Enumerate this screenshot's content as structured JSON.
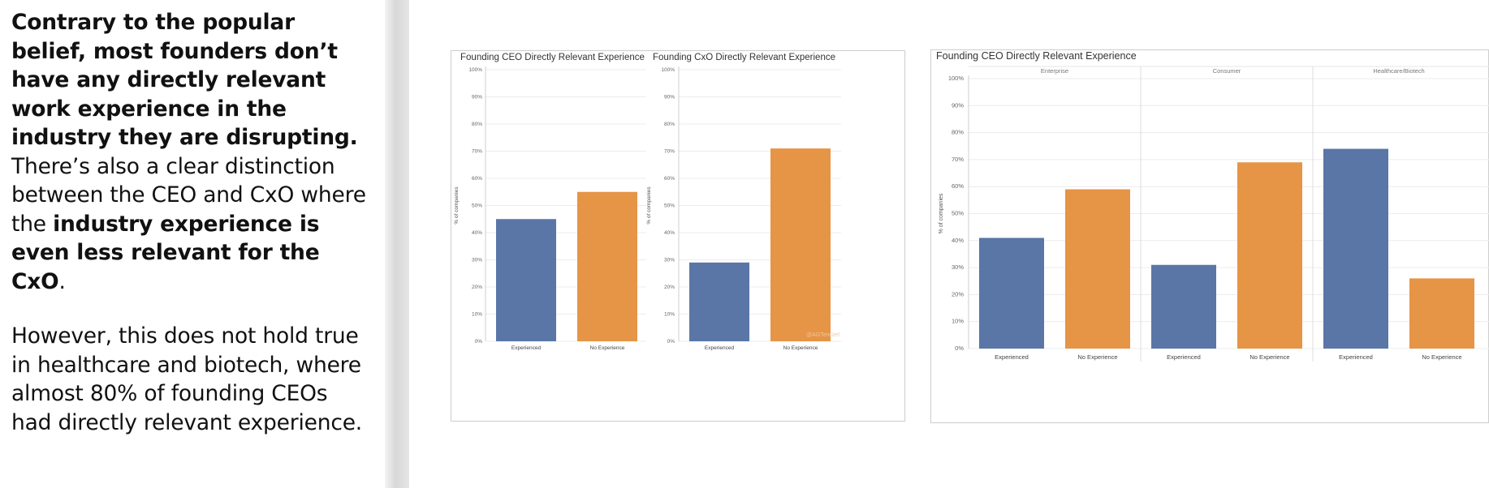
{
  "text": {
    "p1_bold": "Contrary to the popular belief, most founders don’t have any directly relevant work experience in the industry they are disrupting.",
    "p1_normal_a": " There’s also a clear distinction between the CEO and CxO where the ",
    "p1_bold_b": "industry experience is even less relevant for the CxO",
    "p1_normal_b": ".",
    "p2": "However, this does not hold true in healthcare and biotech, where almost 80% of founding CEOs had directly relevant experience."
  },
  "colors": {
    "experienced": "#5976a6",
    "no_experience": "#e69446",
    "gridline": "#ececec",
    "axis": "#cfcfcf"
  },
  "chart_data": [
    {
      "type": "bar",
      "title": "Founding CEO Directly Relevant Experience",
      "ylabel": "% of companies",
      "ylim": [
        0,
        100
      ],
      "yticks": [
        "0%",
        "10%",
        "20%",
        "30%",
        "40%",
        "50%",
        "60%",
        "70%",
        "80%",
        "90%",
        "100%"
      ],
      "categories": [
        "Experienced",
        "No Experience"
      ],
      "values": [
        45,
        55
      ]
    },
    {
      "type": "bar",
      "title": "Founding CxO Directly Relevant Experience",
      "ylabel": "% of companies",
      "ylim": [
        0,
        100
      ],
      "yticks": [
        "0%",
        "10%",
        "20%",
        "30%",
        "40%",
        "50%",
        "60%",
        "70%",
        "80%",
        "90%",
        "100%"
      ],
      "categories": [
        "Experienced",
        "No Experience"
      ],
      "values": [
        29,
        71
      ],
      "watermark": "@AGTemizel"
    },
    {
      "type": "bar",
      "title": "Founding CEO Directly Relevant Experience",
      "ylabel": "% of companies",
      "ylim": [
        0,
        100
      ],
      "yticks": [
        "0%",
        "10%",
        "20%",
        "30%",
        "40%",
        "50%",
        "60%",
        "70%",
        "80%",
        "90%",
        "100%"
      ],
      "facets": [
        {
          "name": "Enterprise",
          "categories": [
            "Experienced",
            "No Experience"
          ],
          "values": [
            41,
            59
          ]
        },
        {
          "name": "Consumer",
          "categories": [
            "Experienced",
            "No Experience"
          ],
          "values": [
            31,
            69
          ]
        },
        {
          "name": "Healthcare/Biotech",
          "categories": [
            "Experienced",
            "No Experience"
          ],
          "values": [
            74,
            26
          ]
        }
      ]
    }
  ]
}
